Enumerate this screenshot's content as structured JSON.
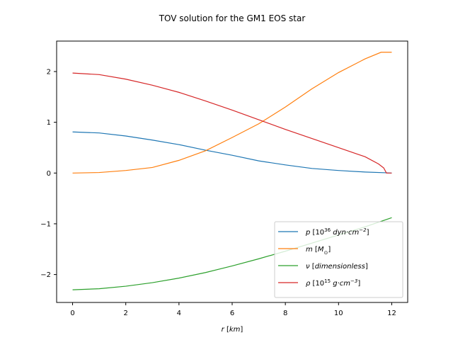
{
  "chart_data": {
    "type": "line",
    "title": "TOV solution for the GM1 EOS star",
    "xlabel": {
      "symbol": "r",
      "unit": "km"
    },
    "ylabel": "",
    "xlim": [
      -0.6,
      12.6
    ],
    "ylim": [
      -2.55,
      2.6
    ],
    "xticks": [
      0,
      2,
      4,
      6,
      8,
      10,
      12
    ],
    "yticks": [
      -2,
      -1,
      0,
      1,
      2
    ],
    "grid": false,
    "legend_position": "lower-right",
    "series": [
      {
        "name": "p [10^36 dyn·cm^-2]",
        "legend": {
          "sym": "p",
          "pre": "[10",
          "sup": "36",
          "mid": "dyn·cm",
          "sup2": "−2",
          "post": "]"
        },
        "color": "#1f77b4",
        "x": [
          0,
          1,
          2,
          3,
          4,
          5,
          6,
          7,
          8,
          9,
          10,
          11,
          11.8,
          12.0
        ],
        "y": [
          0.81,
          0.79,
          0.73,
          0.65,
          0.56,
          0.45,
          0.35,
          0.24,
          0.16,
          0.09,
          0.05,
          0.02,
          0.005,
          0.0
        ]
      },
      {
        "name": "m [M_sun]",
        "legend": {
          "sym": "m",
          "pre": "[",
          "mid": "M",
          "sub": "⊙",
          "post": "]"
        },
        "color": "#ff7f0e",
        "x": [
          0,
          1,
          2,
          3,
          4,
          5,
          6,
          7,
          8,
          9,
          10,
          11,
          11.6,
          12.0
        ],
        "y": [
          0.0,
          0.01,
          0.05,
          0.11,
          0.25,
          0.44,
          0.7,
          0.97,
          1.3,
          1.66,
          1.98,
          2.25,
          2.38,
          2.38
        ]
      },
      {
        "name": "ν [dimensionless]",
        "legend": {
          "sym": "ν",
          "pre": "[",
          "mid": "dimensionless",
          "post": "]"
        },
        "color": "#2ca02c",
        "x": [
          0,
          1,
          2,
          3,
          4,
          5,
          6,
          7,
          8,
          9,
          10,
          11,
          12
        ],
        "y": [
          -2.3,
          -2.28,
          -2.23,
          -2.16,
          -2.07,
          -1.96,
          -1.83,
          -1.69,
          -1.54,
          -1.38,
          -1.22,
          -1.06,
          -0.88
        ]
      },
      {
        "name": "ρ [10^15 g·cm^-3]",
        "legend": {
          "sym": "ρ",
          "pre": "[10",
          "sup": "15",
          "mid": "g·cm",
          "sup2": "−3",
          "post": "]"
        },
        "color": "#d62728",
        "x": [
          0,
          1,
          2,
          3,
          4,
          5,
          6,
          7,
          8,
          9,
          10,
          11,
          11.5,
          11.7,
          11.8,
          12.0
        ],
        "y": [
          1.97,
          1.94,
          1.85,
          1.73,
          1.59,
          1.42,
          1.24,
          1.05,
          0.86,
          0.68,
          0.5,
          0.32,
          0.18,
          0.1,
          0.0,
          0.0
        ]
      }
    ]
  }
}
